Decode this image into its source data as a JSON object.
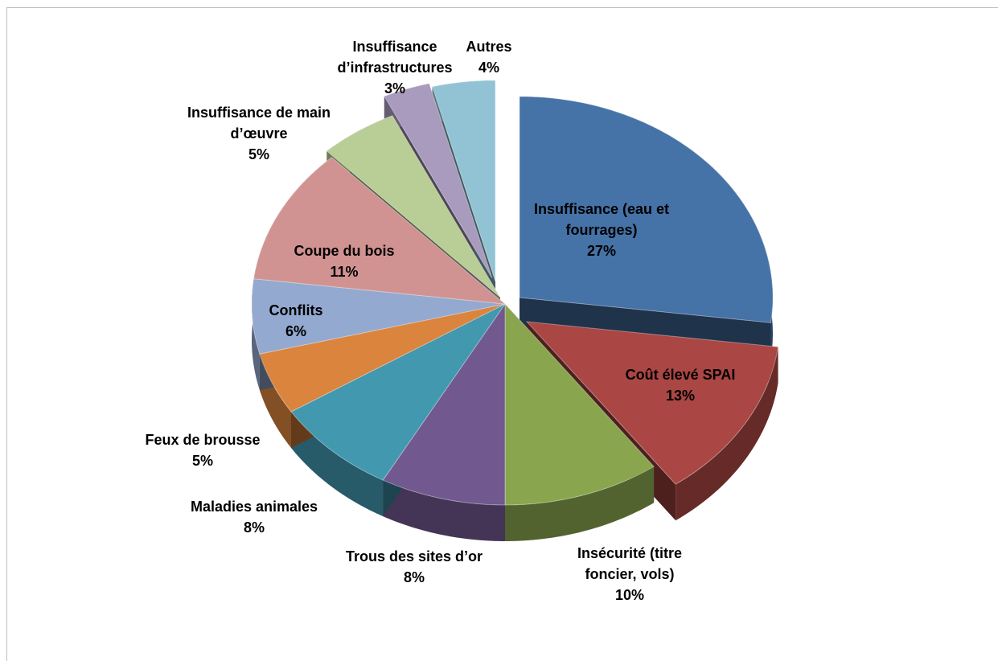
{
  "chart_data": {
    "type": "pie",
    "title": "",
    "legend": "none",
    "slices": [
      {
        "label_lines": [
          "Insuffisance (eau et",
          "fourrages)"
        ],
        "value": 27,
        "value_label": "27%",
        "color": "#4572a7"
      },
      {
        "label_lines": [
          "Coût élevé SPAI"
        ],
        "value": 13,
        "value_label": "13%",
        "color": "#aa4643"
      },
      {
        "label_lines": [
          "Insécurité (titre",
          "foncier, vols)"
        ],
        "value": 10,
        "value_label": "10%",
        "color": "#89a54e"
      },
      {
        "label_lines": [
          "Trous des sites d’or"
        ],
        "value": 8,
        "value_label": "8%",
        "color": "#71588f"
      },
      {
        "label_lines": [
          "Maladies animales"
        ],
        "value": 8,
        "value_label": "8%",
        "color": "#4198af"
      },
      {
        "label_lines": [
          "Feux de brousse"
        ],
        "value": 5,
        "value_label": "5%",
        "color": "#db843d"
      },
      {
        "label_lines": [
          "Conflits"
        ],
        "value": 6,
        "value_label": "6%",
        "color": "#93a9cf"
      },
      {
        "label_lines": [
          "Coupe du bois"
        ],
        "value": 11,
        "value_label": "11%",
        "color": "#d19392"
      },
      {
        "label_lines": [
          "Insuffisance de main",
          "d’œuvre"
        ],
        "value": 5,
        "value_label": "5%",
        "color": "#b9cd96"
      },
      {
        "label_lines": [
          "Insuffisance",
          "d’infrastructures"
        ],
        "value": 3,
        "value_label": "3%",
        "color": "#a99bbd"
      },
      {
        "label_lines": [
          "Autres"
        ],
        "value": 4,
        "value_label": "4%",
        "color": "#91c3d5"
      }
    ]
  }
}
